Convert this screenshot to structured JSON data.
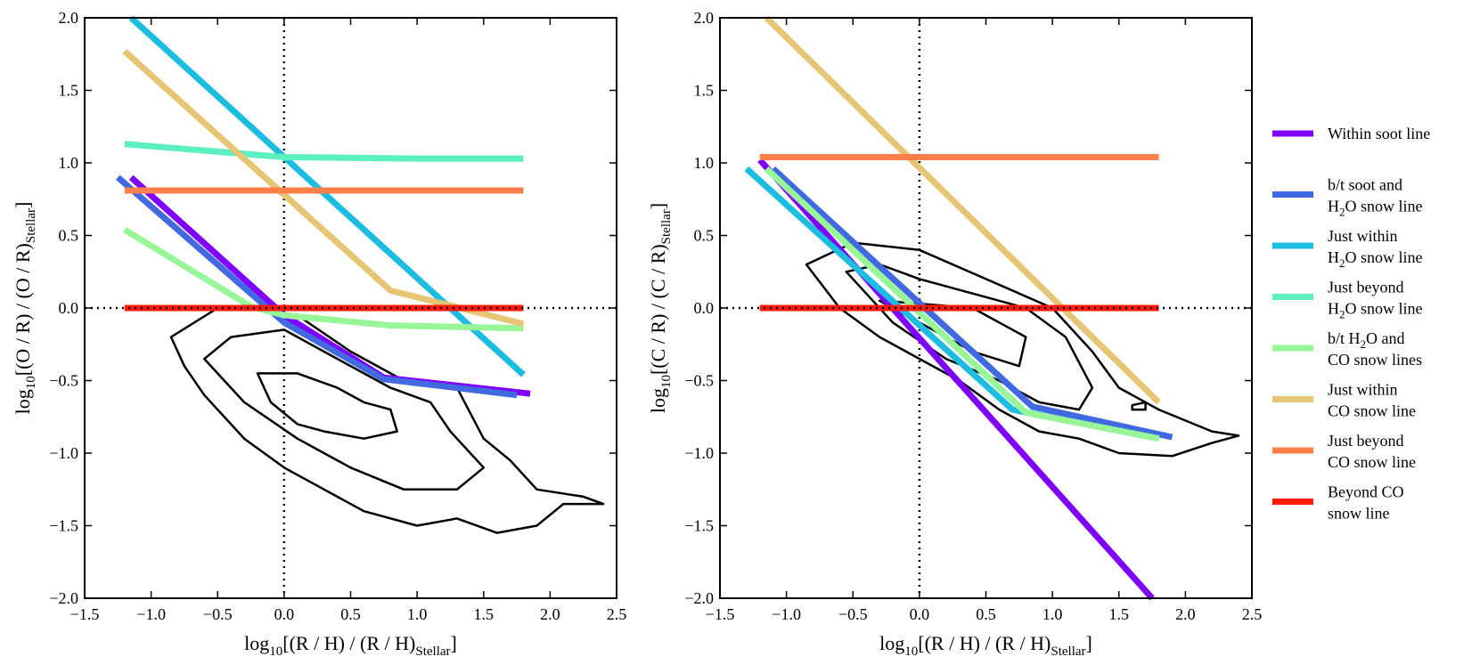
{
  "chart_data": [
    {
      "type": "line",
      "xlim": [
        -1.5,
        2.5
      ],
      "ylim": [
        -2.0,
        2.0
      ],
      "xticks": [
        -1.5,
        -1.0,
        -0.5,
        0.0,
        0.5,
        1.0,
        1.5,
        2.0,
        2.5
      ],
      "yticks": [
        -2.0,
        -1.5,
        -1.0,
        -0.5,
        0.0,
        0.5,
        1.0,
        1.5,
        2.0
      ],
      "xtick_labels": [
        "−1.5",
        "−1.0",
        "−0.5",
        "0.0",
        "0.5",
        "1.0",
        "1.5",
        "2.0",
        "2.5"
      ],
      "ytick_labels": [
        "−2.0",
        "−1.5",
        "−1.0",
        "−0.5",
        "0.0",
        "0.5",
        "1.0",
        "1.5",
        "2.0"
      ],
      "xlabel": {
        "main": "log",
        "sub1": "10",
        "mid": "[(R / H) / (R / H)",
        "sub2": "Stellar",
        "end": "]"
      },
      "ylabel": {
        "main": "log",
        "sub1": "10",
        "mid": "[(O / R) / (O / R)",
        "sub2": "Stellar",
        "end": "]"
      },
      "reference_lines": {
        "x": 0.0,
        "y": 0.0
      },
      "series": [
        {
          "name": "Within soot line",
          "color": "#8000ff",
          "points": [
            [
              -1.15,
              0.9
            ],
            [
              0.0,
              -0.05
            ],
            [
              0.75,
              -0.48
            ],
            [
              1.85,
              -0.59
            ]
          ]
        },
        {
          "name": "b/t soot and H2O snow line",
          "color": "#4169e1",
          "points": [
            [
              -1.25,
              0.9
            ],
            [
              0.0,
              -0.1
            ],
            [
              0.75,
              -0.49
            ],
            [
              1.75,
              -0.6
            ]
          ]
        },
        {
          "name": "Just within H2O snow line",
          "color": "#1cbde0",
          "points": [
            [
              -1.15,
              2.0
            ],
            [
              1.8,
              -0.46
            ]
          ]
        },
        {
          "name": "Just beyond H2O snow line",
          "color": "#5cf0c0",
          "points": [
            [
              -1.2,
              1.13
            ],
            [
              0.0,
              1.04
            ],
            [
              1.0,
              1.03
            ],
            [
              1.8,
              1.03
            ]
          ]
        },
        {
          "name": "b/t H2O and CO snow lines",
          "color": "#98f598",
          "points": [
            [
              -1.2,
              0.54
            ],
            [
              -0.25,
              0.01
            ],
            [
              0.0,
              -0.05
            ],
            [
              0.8,
              -0.12
            ],
            [
              1.8,
              -0.14
            ]
          ]
        },
        {
          "name": "Just within CO snow line",
          "color": "#e6c574",
          "points": [
            [
              -1.2,
              1.77
            ],
            [
              0.8,
              0.12
            ],
            [
              1.8,
              -0.11
            ]
          ]
        },
        {
          "name": "Just beyond CO snow line",
          "color": "#ff7f4a",
          "points": [
            [
              -1.2,
              0.81
            ],
            [
              1.8,
              0.81
            ]
          ]
        },
        {
          "name": "Beyond CO snow line",
          "color": "#ff1a0a",
          "points": [
            [
              -1.2,
              0.0
            ],
            [
              1.8,
              0.0
            ]
          ]
        }
      ],
      "contours": [
        [
          [
            -0.85,
            -0.2
          ],
          [
            -0.5,
            0.0
          ],
          [
            -0.3,
            0.0
          ],
          [
            0.1,
            -0.05
          ],
          [
            0.5,
            -0.3
          ],
          [
            0.9,
            -0.5
          ],
          [
            1.3,
            -0.55
          ],
          [
            1.5,
            -0.9
          ],
          [
            1.7,
            -1.05
          ],
          [
            1.9,
            -1.25
          ],
          [
            2.25,
            -1.3
          ],
          [
            2.4,
            -1.35
          ],
          [
            2.1,
            -1.35
          ],
          [
            1.9,
            -1.5
          ],
          [
            1.6,
            -1.55
          ],
          [
            1.3,
            -1.45
          ],
          [
            1.0,
            -1.5
          ],
          [
            0.6,
            -1.4
          ],
          [
            0.3,
            -1.25
          ],
          [
            0.0,
            -1.1
          ],
          [
            -0.3,
            -0.9
          ],
          [
            -0.6,
            -0.6
          ],
          [
            -0.75,
            -0.4
          ],
          [
            -0.85,
            -0.2
          ]
        ],
        [
          [
            -0.6,
            -0.35
          ],
          [
            -0.4,
            -0.2
          ],
          [
            0.0,
            -0.15
          ],
          [
            0.4,
            -0.35
          ],
          [
            0.8,
            -0.55
          ],
          [
            1.1,
            -0.65
          ],
          [
            1.25,
            -0.85
          ],
          [
            1.5,
            -1.1
          ],
          [
            1.3,
            -1.25
          ],
          [
            0.9,
            -1.25
          ],
          [
            0.5,
            -1.1
          ],
          [
            0.1,
            -0.9
          ],
          [
            -0.3,
            -0.65
          ],
          [
            -0.6,
            -0.35
          ]
        ],
        [
          [
            -0.2,
            -0.45
          ],
          [
            0.1,
            -0.45
          ],
          [
            0.4,
            -0.55
          ],
          [
            0.6,
            -0.65
          ],
          [
            0.8,
            -0.7
          ],
          [
            0.85,
            -0.85
          ],
          [
            0.6,
            -0.9
          ],
          [
            0.3,
            -0.85
          ],
          [
            0.1,
            -0.8
          ],
          [
            -0.1,
            -0.65
          ],
          [
            -0.2,
            -0.45
          ]
        ]
      ]
    },
    {
      "type": "line",
      "xlim": [
        -1.5,
        2.5
      ],
      "ylim": [
        -2.0,
        2.0
      ],
      "xticks": [
        -1.5,
        -1.0,
        -0.5,
        0.0,
        0.5,
        1.0,
        1.5,
        2.0,
        2.5
      ],
      "yticks": [
        -2.0,
        -1.5,
        -1.0,
        -0.5,
        0.0,
        0.5,
        1.0,
        1.5,
        2.0
      ],
      "xtick_labels": [
        "−1.5",
        "−1.0",
        "−0.5",
        "0.0",
        "0.5",
        "1.0",
        "1.5",
        "2.0",
        "2.5"
      ],
      "ytick_labels": [
        "−2.0",
        "−1.5",
        "−1.0",
        "−0.5",
        "0.0",
        "0.5",
        "1.0",
        "1.5",
        "2.0"
      ],
      "xlabel": {
        "main": "log",
        "sub1": "10",
        "mid": "[(R / H) / (R / H)",
        "sub2": "Stellar",
        "end": "]"
      },
      "ylabel": {
        "main": "log",
        "sub1": "10",
        "mid": "[(C / R) / (C / R)",
        "sub2": "Stellar",
        "end": "]"
      },
      "reference_lines": {
        "x": 0.0,
        "y": 0.0
      },
      "series": [
        {
          "name": "Within soot line",
          "color": "#8000ff",
          "points": [
            [
              -1.2,
              1.02
            ],
            [
              1.75,
              -2.0
            ]
          ]
        },
        {
          "name": "b/t soot and H2O snow line",
          "color": "#4169e1",
          "points": [
            [
              -1.1,
              0.96
            ],
            [
              0.85,
              -0.68
            ],
            [
              1.9,
              -0.89
            ]
          ]
        },
        {
          "name": "Just within H2O snow line",
          "color": "#1cbde0",
          "points": [
            [
              -1.3,
              0.96
            ],
            [
              0.7,
              -0.7
            ],
            [
              1.75,
              -0.89
            ]
          ]
        },
        {
          "name": "Just beyond H2O snow line",
          "color": "#5cf0c0",
          "points": [
            [
              -1.15,
              0.96
            ],
            [
              0.8,
              -0.72
            ],
            [
              1.8,
              -0.9
            ]
          ]
        },
        {
          "name": "b/t H2O and CO snow lines",
          "color": "#98f598",
          "points": [
            [
              -1.15,
              0.96
            ],
            [
              0.8,
              -0.72
            ],
            [
              1.8,
              -0.9
            ]
          ]
        },
        {
          "name": "Just within CO snow line",
          "color": "#e6c574",
          "points": [
            [
              -1.15,
              2.0
            ],
            [
              1.8,
              -0.65
            ]
          ]
        },
        {
          "name": "Just beyond CO snow line",
          "color": "#ff7f4a",
          "points": [
            [
              -1.2,
              1.04
            ],
            [
              1.8,
              1.04
            ]
          ]
        },
        {
          "name": "Beyond CO snow line",
          "color": "#ff1a0a",
          "points": [
            [
              -1.2,
              0.0
            ],
            [
              1.8,
              0.0
            ]
          ]
        }
      ],
      "contours": [
        [
          [
            -0.85,
            0.3
          ],
          [
            -0.5,
            0.45
          ],
          [
            0.0,
            0.4
          ],
          [
            0.5,
            0.2
          ],
          [
            1.0,
            0.0
          ],
          [
            1.3,
            -0.3
          ],
          [
            1.5,
            -0.55
          ],
          [
            1.8,
            -0.7
          ],
          [
            2.2,
            -0.85
          ],
          [
            2.4,
            -0.88
          ],
          [
            2.2,
            -0.93
          ],
          [
            1.9,
            -1.02
          ],
          [
            1.5,
            -1.0
          ],
          [
            1.2,
            -0.9
          ],
          [
            0.9,
            -0.85
          ],
          [
            0.6,
            -0.7
          ],
          [
            0.3,
            -0.5
          ],
          [
            0.0,
            -0.35
          ],
          [
            -0.3,
            -0.2
          ],
          [
            -0.6,
            0.0
          ],
          [
            -0.85,
            0.3
          ]
        ],
        [
          [
            -0.55,
            0.25
          ],
          [
            -0.3,
            0.3
          ],
          [
            0.0,
            0.2
          ],
          [
            0.4,
            0.1
          ],
          [
            0.8,
            0.0
          ],
          [
            1.1,
            -0.2
          ],
          [
            1.3,
            -0.55
          ],
          [
            1.2,
            -0.7
          ],
          [
            0.9,
            -0.65
          ],
          [
            0.6,
            -0.5
          ],
          [
            0.2,
            -0.35
          ],
          [
            -0.2,
            -0.1
          ],
          [
            -0.55,
            0.25
          ]
        ],
        [
          [
            -0.3,
            0.05
          ],
          [
            0.0,
            0.03
          ],
          [
            0.4,
            0.0
          ],
          [
            0.8,
            -0.2
          ],
          [
            0.75,
            -0.4
          ],
          [
            0.4,
            -0.3
          ],
          [
            0.0,
            -0.1
          ],
          [
            -0.3,
            0.05
          ]
        ],
        [
          [
            1.6,
            -0.67
          ],
          [
            1.7,
            -0.65
          ],
          [
            1.7,
            -0.7
          ],
          [
            1.6,
            -0.7
          ],
          [
            1.6,
            -0.67
          ]
        ]
      ]
    }
  ],
  "legend": [
    {
      "line1": "Within soot line",
      "line2": "",
      "line2_prefix": "",
      "line2_sub": "",
      "line2_suffix": "",
      "color": "#8000ff"
    },
    {
      "line1": "b/t soot and",
      "line2": "",
      "line2_prefix": "H",
      "line2_sub": "2",
      "line2_suffix": "O snow line",
      "color": "#4169e1"
    },
    {
      "line1": "Just within",
      "line2": "",
      "line2_prefix": "H",
      "line2_sub": "2",
      "line2_suffix": "O snow line",
      "color": "#1cbde0"
    },
    {
      "line1": "Just beyond",
      "line2": "",
      "line2_prefix": "H",
      "line2_sub": "2",
      "line2_suffix": "O snow line",
      "color": "#5cf0c0"
    },
    {
      "line1": "b/t H",
      "line1_sub": "2",
      "line1_suffix": "O and",
      "line2": "CO snow lines",
      "color": "#98f598"
    },
    {
      "line1": "Just within",
      "line2": "CO snow line",
      "color": "#e6c574"
    },
    {
      "line1": "Just beyond",
      "line2": "CO snow line",
      "color": "#ff7f4a"
    },
    {
      "line1": "Beyond CO",
      "line2": "snow line",
      "color": "#ff1a0a"
    }
  ]
}
